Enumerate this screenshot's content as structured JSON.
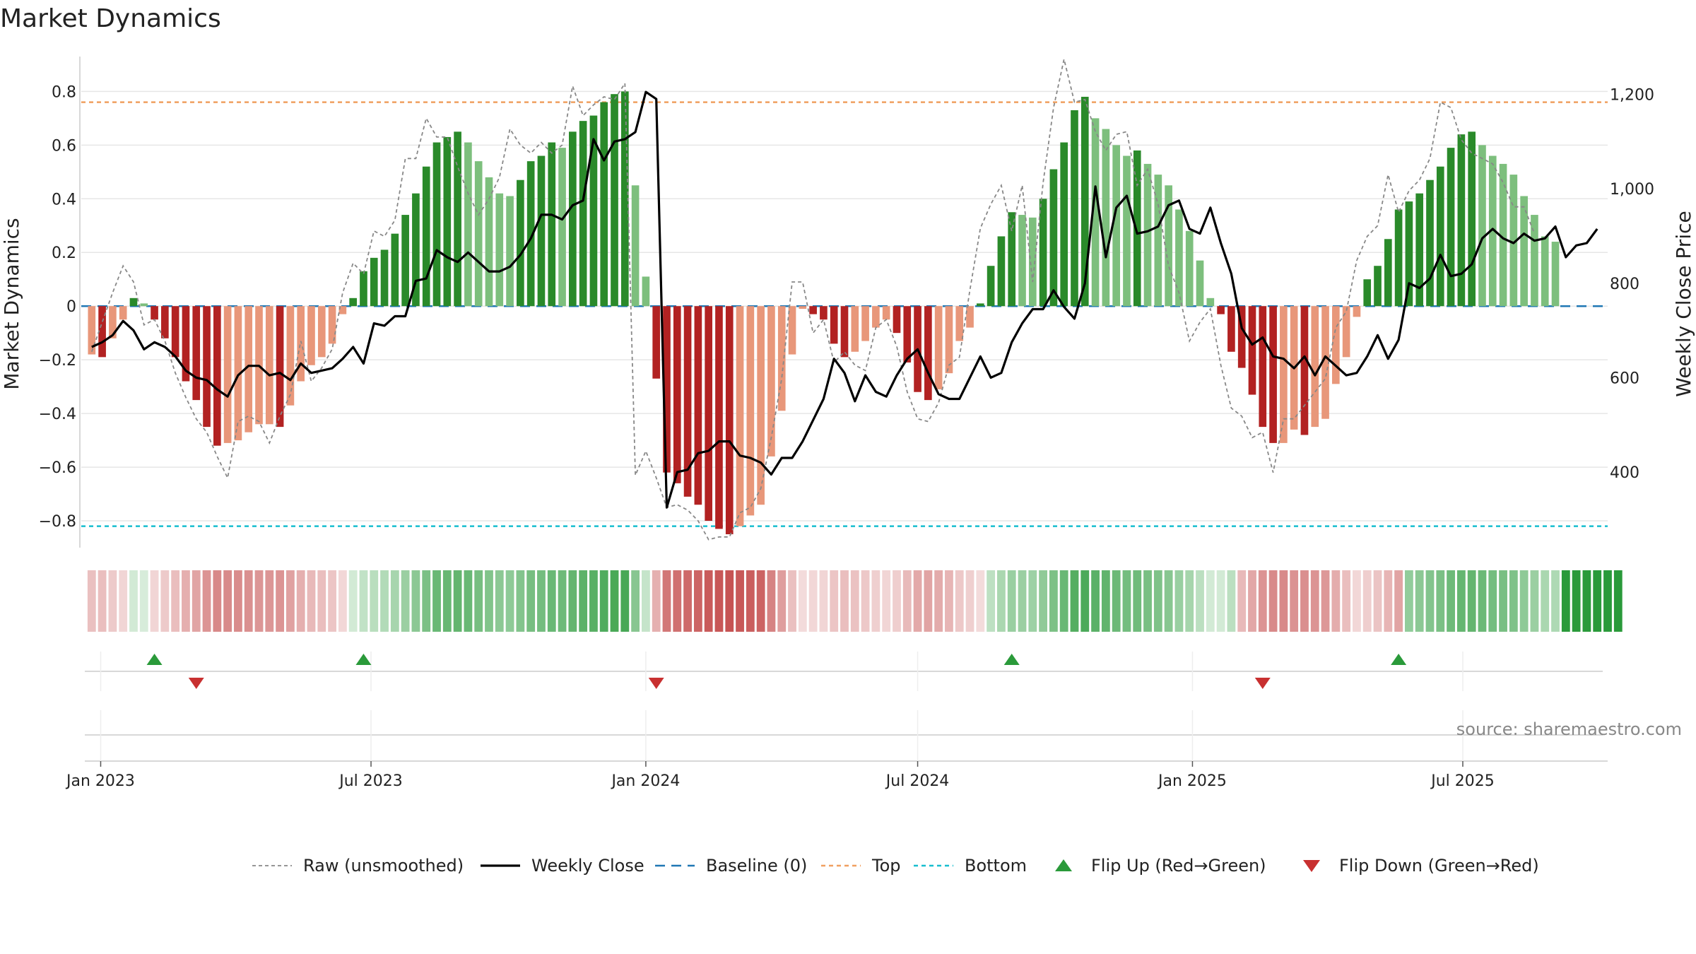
{
  "title": "Market Dynamics",
  "source": "source: sharemaestro.com",
  "colors": {
    "strong_green": "#2a8a2a",
    "light_green": "#7dbf7d",
    "strong_red": "#b22222",
    "light_red": "#e8977a",
    "weekly_close": "#000000",
    "raw": "#888888",
    "baseline": "#1f77b4",
    "top": "#f0a060",
    "bottom": "#17becf",
    "flip_up": "#2a9a3a",
    "flip_down": "#c83030"
  },
  "chart_data": {
    "type": "bar",
    "x_axis": {
      "type": "date",
      "tick_labels": [
        "Jan 2023",
        "Jul 2023",
        "Jan 2024",
        "Jul 2024",
        "Jan 2025",
        "Jul 2025"
      ],
      "tick_dates": [
        "2023-01-01",
        "2023-07-01",
        "2024-01-01",
        "2024-07-01",
        "2025-01-01",
        "2025-07-01"
      ],
      "range": [
        "2022-12-19",
        "2025-10-06"
      ]
    },
    "y_left": {
      "label": "Market Dynamics",
      "ylim": [
        -0.9,
        0.93
      ],
      "ticks": [
        0.8,
        0.6,
        0.4,
        0.2,
        0,
        -0.2,
        -0.4,
        -0.6,
        -0.8
      ],
      "tick_labels": [
        "0.8",
        "0.6",
        "0.4",
        "0.2",
        "0",
        "−0.2",
        "−0.4",
        "−0.6",
        "−0.8"
      ]
    },
    "y_right": {
      "label": "Weekly Close Price",
      "ylim": [
        240,
        1280
      ],
      "ticks": [
        1200,
        1000,
        800,
        600,
        400
      ],
      "tick_labels": [
        "1,200",
        "1,000",
        "800",
        "600",
        "400"
      ]
    },
    "grid": true,
    "reference_lines": {
      "baseline": 0,
      "top": 0.76,
      "bottom": -0.82
    },
    "legend": {
      "placement": "bottom-center",
      "entries": [
        "Raw (unsmoothed)",
        "Weekly Close",
        "Baseline (0)",
        "Top",
        "Bottom",
        "Flip Up (Red→Green)",
        "Flip Down (Green→Red)"
      ]
    },
    "start_date": "2022-12-26",
    "interval_days": 7,
    "market_dynamics": [
      -0.18,
      -0.19,
      -0.12,
      -0.05,
      0.03,
      0.01,
      -0.05,
      -0.12,
      -0.19,
      -0.28,
      -0.35,
      -0.45,
      -0.52,
      -0.51,
      -0.5,
      -0.47,
      -0.44,
      -0.44,
      -0.45,
      -0.37,
      -0.28,
      -0.22,
      -0.19,
      -0.14,
      -0.03,
      0.03,
      0.13,
      0.18,
      0.21,
      0.27,
      0.34,
      0.42,
      0.52,
      0.61,
      0.63,
      0.65,
      0.61,
      0.54,
      0.48,
      0.42,
      0.41,
      0.47,
      0.54,
      0.56,
      0.61,
      0.59,
      0.65,
      0.69,
      0.71,
      0.76,
      0.79,
      0.8,
      0.45,
      0.11,
      -0.27,
      -0.62,
      -0.66,
      -0.71,
      -0.74,
      -0.8,
      -0.83,
      -0.85,
      -0.82,
      -0.78,
      -0.74,
      -0.56,
      -0.39,
      -0.18,
      -0.01,
      -0.03,
      -0.05,
      -0.14,
      -0.19,
      -0.17,
      -0.13,
      -0.08,
      -0.05,
      -0.1,
      -0.21,
      -0.32,
      -0.35,
      -0.31,
      -0.25,
      -0.13,
      -0.08,
      0.01,
      0.15,
      0.26,
      0.35,
      0.34,
      0.33,
      0.4,
      0.51,
      0.61,
      0.73,
      0.78,
      0.7,
      0.66,
      0.6,
      0.56,
      0.58,
      0.53,
      0.49,
      0.45,
      0.36,
      0.28,
      0.17,
      0.03,
      -0.03,
      -0.17,
      -0.23,
      -0.33,
      -0.45,
      -0.51,
      -0.51,
      -0.46,
      -0.48,
      -0.45,
      -0.42,
      -0.29,
      -0.19,
      -0.04,
      0.1,
      0.15,
      0.25,
      0.36,
      0.39,
      0.42,
      0.47,
      0.52,
      0.59,
      0.64,
      0.65,
      0.6,
      0.56,
      0.53,
      0.49,
      0.41,
      0.34,
      0.26,
      0.24
    ],
    "raw_unsmoothed": [
      -0.17,
      -0.06,
      0.05,
      0.15,
      0.09,
      -0.07,
      -0.05,
      -0.13,
      -0.25,
      -0.34,
      -0.42,
      -0.47,
      -0.56,
      -0.64,
      -0.43,
      -0.41,
      -0.43,
      -0.51,
      -0.41,
      -0.33,
      -0.13,
      -0.28,
      -0.23,
      -0.16,
      0.05,
      0.16,
      0.12,
      0.28,
      0.26,
      0.32,
      0.55,
      0.55,
      0.7,
      0.63,
      0.63,
      0.52,
      0.42,
      0.34,
      0.4,
      0.48,
      0.66,
      0.6,
      0.57,
      0.61,
      0.57,
      0.6,
      0.82,
      0.71,
      0.75,
      0.78,
      0.77,
      0.83,
      -0.63,
      -0.54,
      -0.64,
      -0.75,
      -0.74,
      -0.76,
      -0.8,
      -0.87,
      -0.86,
      -0.86,
      -0.77,
      -0.75,
      -0.68,
      -0.49,
      -0.27,
      0.09,
      0.09,
      -0.1,
      -0.05,
      -0.21,
      -0.17,
      -0.22,
      -0.24,
      -0.08,
      -0.05,
      -0.15,
      -0.32,
      -0.42,
      -0.43,
      -0.36,
      -0.22,
      -0.19,
      0.06,
      0.29,
      0.38,
      0.45,
      0.28,
      0.45,
      0.09,
      0.46,
      0.74,
      0.92,
      0.76,
      0.77,
      0.65,
      0.58,
      0.64,
      0.65,
      0.45,
      0.51,
      0.38,
      0.15,
      0.05,
      -0.13,
      -0.06,
      -0.01,
      -0.22,
      -0.38,
      -0.41,
      -0.49,
      -0.47,
      -0.62,
      -0.42,
      -0.42,
      -0.37,
      -0.32,
      -0.27,
      -0.08,
      -0.02,
      0.17,
      0.26,
      0.3,
      0.49,
      0.35,
      0.43,
      0.47,
      0.55,
      0.76,
      0.74,
      0.62,
      0.57,
      0.55,
      0.53,
      0.46,
      0.37,
      0.37,
      0.27
    ],
    "weekly_close": [
      665,
      675,
      690,
      720,
      700,
      660,
      675,
      665,
      645,
      615,
      600,
      595,
      575,
      560,
      605,
      625,
      625,
      605,
      610,
      595,
      630,
      610,
      615,
      620,
      640,
      665,
      630,
      715,
      710,
      730,
      730,
      805,
      810,
      870,
      855,
      845,
      865,
      845,
      825,
      825,
      835,
      860,
      895,
      945,
      945,
      935,
      965,
      975,
      1105,
      1060,
      1100,
      1105,
      1120,
      1205,
      1190,
      325,
      400,
      405,
      440,
      445,
      465,
      465,
      435,
      430,
      420,
      395,
      430,
      430,
      465,
      510,
      555,
      640,
      610,
      550,
      605,
      570,
      560,
      605,
      640,
      660,
      610,
      565,
      555,
      555,
      600,
      645,
      600,
      610,
      675,
      715,
      745,
      745,
      785,
      750,
      725,
      800,
      1005,
      855,
      960,
      985,
      905,
      910,
      920,
      965,
      975,
      915,
      905,
      960,
      885,
      820,
      705,
      670,
      685,
      645,
      640,
      620,
      645,
      605,
      645,
      625,
      605,
      610,
      645,
      690,
      640,
      680,
      800,
      790,
      810,
      860,
      815,
      820,
      840,
      895,
      915,
      895,
      885,
      905,
      890,
      895,
      920,
      855,
      880,
      885,
      915
    ],
    "regime_band": [
      "-1",
      "-1",
      "-1",
      "-1",
      "1",
      "1",
      "-1",
      "-1",
      "-1",
      "-1",
      "-1",
      "-1",
      "-1",
      "-1",
      "-1",
      "-1",
      "-1",
      "-1",
      "-1",
      "-1",
      "-1",
      "-1",
      "-1",
      "-1",
      "-1",
      "1",
      "1",
      "1",
      "1",
      "1",
      "1",
      "1",
      "1",
      "1",
      "1",
      "1",
      "1",
      "1",
      "1",
      "1",
      "1",
      "1",
      "1",
      "1",
      "1",
      "1",
      "1",
      "1",
      "1",
      "1",
      "1",
      "1",
      "1",
      "1",
      "-1",
      "-1",
      "-1",
      "-1",
      "-1",
      "-1",
      "-1",
      "-1",
      "-1",
      "-1",
      "-1",
      "-1",
      "-1",
      "-1",
      "-1",
      "-1",
      "-1",
      "-1",
      "-1",
      "-1",
      "-1",
      "-1",
      "-1",
      "-1",
      "-1",
      "-1",
      "-1",
      "-1",
      "-1",
      "-1",
      "-1",
      "-1",
      "1",
      "1",
      "1",
      "1",
      "1",
      "1",
      "1",
      "1",
      "1",
      "1",
      "1",
      "1",
      "1",
      "1",
      "1",
      "1",
      "1",
      "1",
      "1",
      "1",
      "1",
      "1",
      "1",
      "1",
      "-1",
      "-1",
      "-1",
      "-1",
      "-1",
      "-1",
      "-1",
      "-1",
      "-1",
      "-1",
      "-1",
      "-1",
      "-1",
      "-1",
      "-1",
      "-1",
      "1",
      "1",
      "1",
      "1",
      "1",
      "1",
      "1",
      "1",
      "1",
      "1",
      "1",
      "1",
      "1",
      "1",
      "1",
      "1",
      "1",
      "1",
      "1",
      "1",
      "1"
    ],
    "flip_up_dates": [
      "2023-02-06",
      "2023-06-26",
      "2024-09-02",
      "2025-05-19"
    ],
    "flip_down_dates": [
      "2023-03-06",
      "2024-01-08",
      "2025-02-17"
    ]
  }
}
